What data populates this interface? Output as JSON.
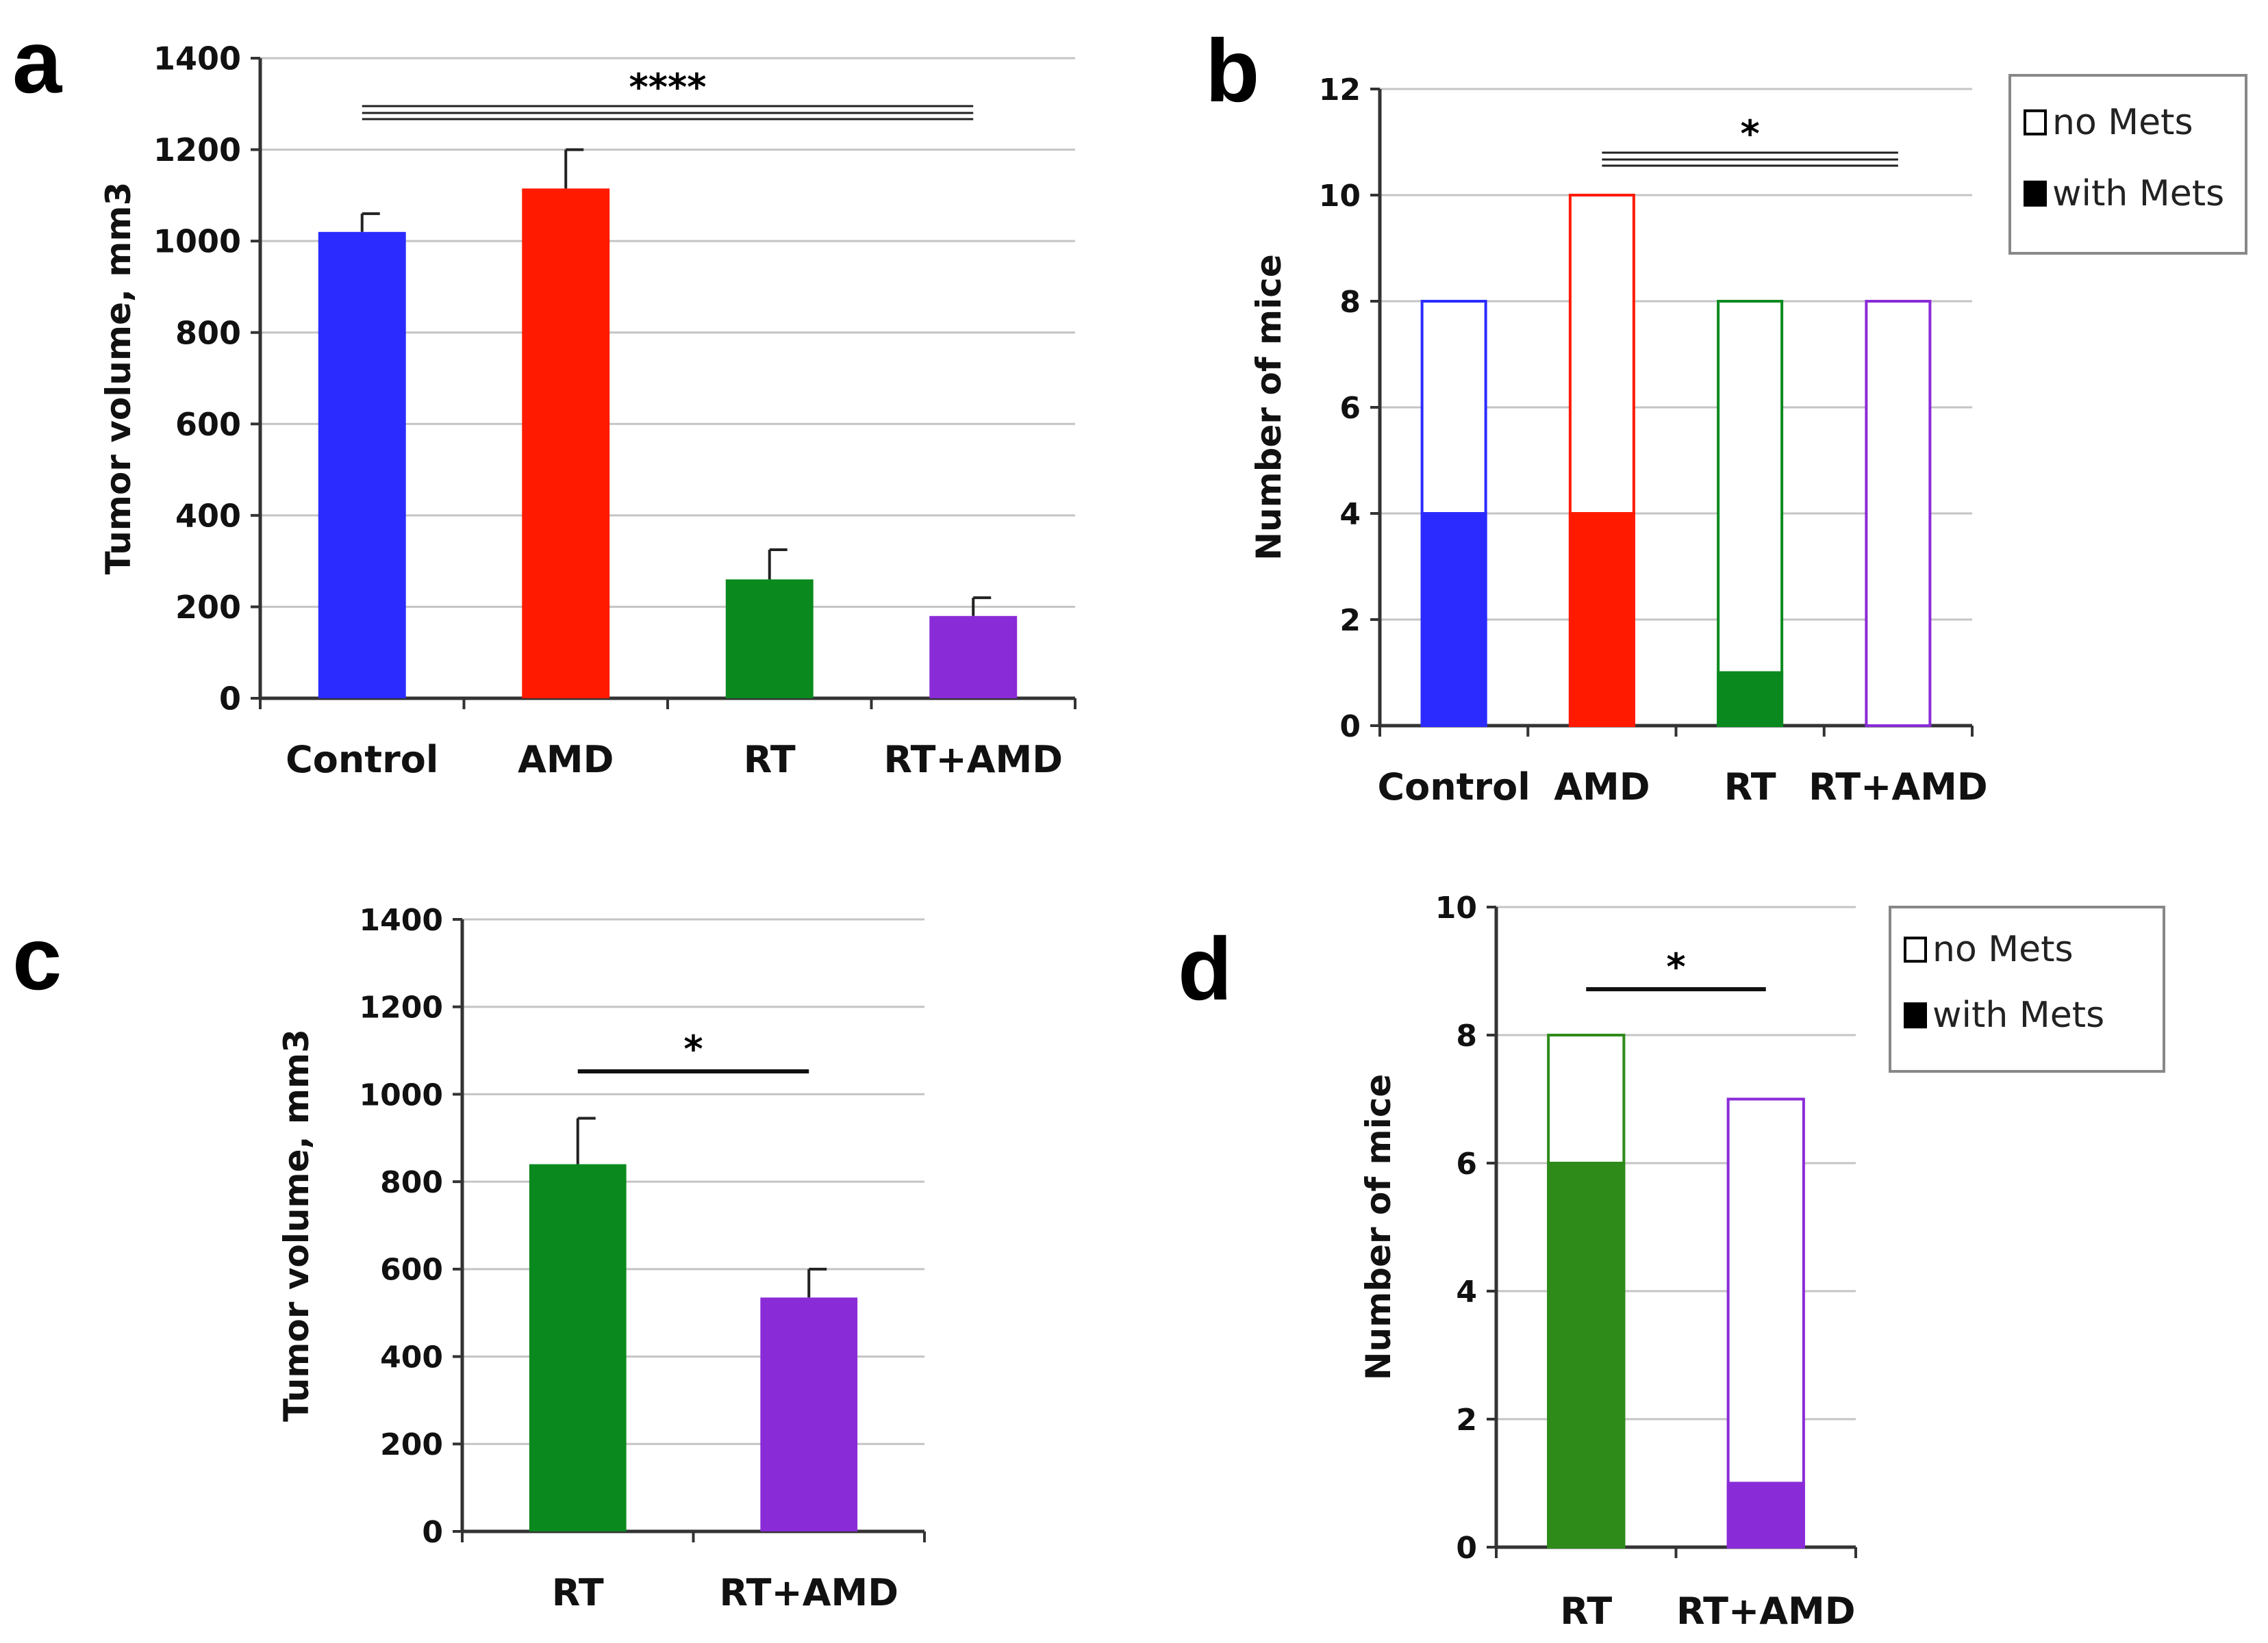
{
  "chart_data": [
    {
      "panel": "a",
      "type": "bar",
      "ylabel": "Tumor volume, mm3",
      "ylim": [
        0,
        1400
      ],
      "yticks": [
        0,
        200,
        400,
        600,
        800,
        1000,
        1200,
        1400
      ],
      "ytick_labels": [
        "0",
        "200",
        "400",
        "600",
        "800",
        "1000",
        "1200",
        "1400"
      ],
      "categories": [
        "Control",
        "AMD",
        "RT",
        "RT+AMD"
      ],
      "values": [
        1020,
        1115,
        260,
        180
      ],
      "errors": [
        40,
        85,
        65,
        40
      ],
      "colors": [
        "#2b2bff",
        "#ff1a00",
        "#0a8a1e",
        "#8a2bd8"
      ],
      "significance": "****",
      "significance_span": [
        "Control",
        "RT+AMD"
      ]
    },
    {
      "panel": "b",
      "type": "bar",
      "stacked": true,
      "ylabel": "Number of mice",
      "ylim": [
        0,
        12
      ],
      "yticks": [
        0,
        2,
        4,
        6,
        8,
        10,
        12
      ],
      "ytick_labels": [
        "0",
        "2",
        "4",
        "6",
        "8",
        "10",
        "12"
      ],
      "categories": [
        "Control",
        "AMD",
        "RT",
        "RT+AMD"
      ],
      "series": [
        {
          "name": "with Mets",
          "values": [
            4,
            4,
            1,
            0
          ]
        },
        {
          "name": "no Mets",
          "values": [
            4,
            6,
            7,
            8
          ]
        }
      ],
      "colors": [
        "#2b2bff",
        "#ff1a00",
        "#0a8a1e",
        "#8a2bd8"
      ],
      "legend": [
        "no Mets",
        "with Mets"
      ],
      "significance": "*",
      "significance_span": [
        "AMD",
        "RT+AMD"
      ]
    },
    {
      "panel": "c",
      "type": "bar",
      "ylabel": "Tumor volume, mm3",
      "ylim": [
        0,
        1400
      ],
      "yticks": [
        0,
        200,
        400,
        600,
        800,
        1000,
        1200,
        1400
      ],
      "ytick_labels": [
        "0",
        "200",
        "400",
        "600",
        "800",
        "1000",
        "1200",
        "1400"
      ],
      "categories": [
        "RT",
        "RT+AMD"
      ],
      "values": [
        840,
        535
      ],
      "errors": [
        105,
        65
      ],
      "colors": [
        "#0a8a1e",
        "#8a2bd8"
      ],
      "significance": "*",
      "significance_span": [
        "RT",
        "RT+AMD"
      ]
    },
    {
      "panel": "d",
      "type": "bar",
      "stacked": true,
      "ylabel": "Number of mice",
      "ylim": [
        0,
        10
      ],
      "yticks": [
        0,
        2,
        4,
        6,
        8,
        10
      ],
      "ytick_labels": [
        "0",
        "2",
        "4",
        "6",
        "8",
        "10"
      ],
      "categories": [
        "RT",
        "RT+AMD"
      ],
      "series": [
        {
          "name": "with Mets",
          "values": [
            6,
            1
          ]
        },
        {
          "name": "no Mets",
          "values": [
            2,
            6
          ]
        }
      ],
      "colors": [
        "#2e8b1a",
        "#8a2bd8"
      ],
      "legend": [
        "no Mets",
        "with Mets"
      ],
      "significance": "*",
      "significance_span": [
        "RT",
        "RT+AMD"
      ]
    }
  ]
}
